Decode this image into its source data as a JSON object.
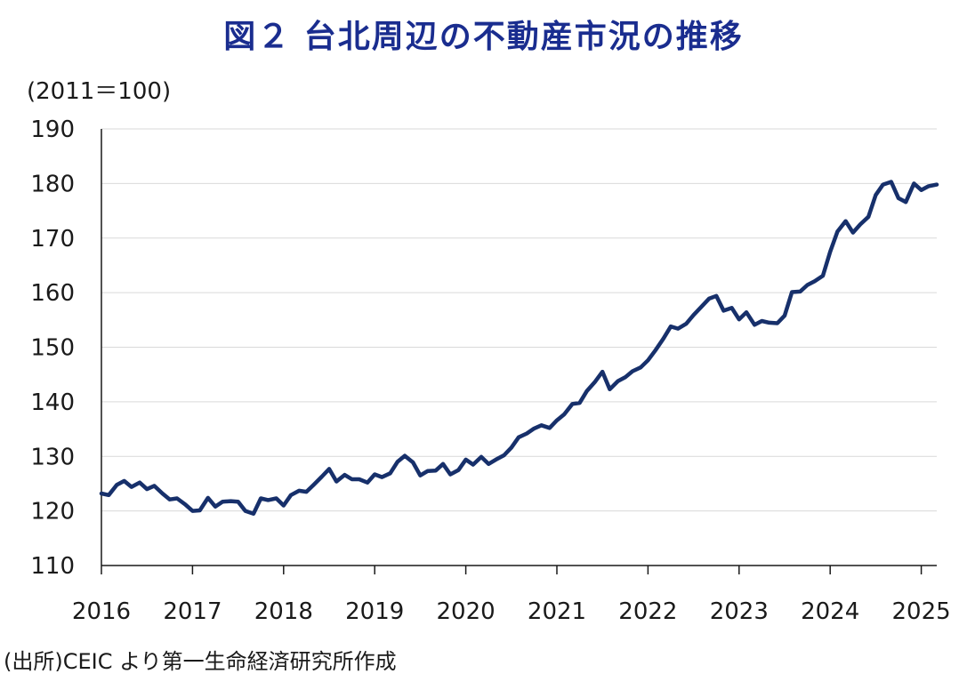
{
  "title": "図２ 台北周辺の不動産市況の推移",
  "unit_label": "(2011＝100)",
  "source": "(出所)CEIC より第一生命経済研究所作成",
  "colors": {
    "title": "#1a2d8f",
    "line": "#17306b",
    "grid": "#d9d9d9",
    "axis": "#1a1a1a"
  },
  "chart_data": {
    "type": "line",
    "title": "図２ 台北周辺の不動産市況の推移",
    "ylabel": "(2011＝100)",
    "xlabel": "",
    "ylim": [
      110,
      190
    ],
    "yticks": [
      110,
      120,
      130,
      140,
      150,
      160,
      170,
      180,
      190
    ],
    "xlim": [
      2016,
      2025.17
    ],
    "xticks": [
      2016,
      2017,
      2018,
      2019,
      2020,
      2021,
      2022,
      2023,
      2024,
      2025
    ],
    "grid": "horizontal",
    "series": [
      {
        "name": "",
        "x": [
          2016.0,
          2016.08,
          2016.17,
          2016.25,
          2016.33,
          2016.42,
          2016.5,
          2016.58,
          2016.67,
          2016.75,
          2016.83,
          2016.92,
          2017.0,
          2017.08,
          2017.17,
          2017.25,
          2017.33,
          2017.42,
          2017.5,
          2017.58,
          2017.67,
          2017.75,
          2017.83,
          2017.92,
          2018.0,
          2018.08,
          2018.17,
          2018.25,
          2018.33,
          2018.42,
          2018.5,
          2018.58,
          2018.67,
          2018.75,
          2018.83,
          2018.92,
          2019.0,
          2019.08,
          2019.17,
          2019.25,
          2019.33,
          2019.42,
          2019.5,
          2019.58,
          2019.67,
          2019.75,
          2019.83,
          2019.92,
          2020.0,
          2020.08,
          2020.17,
          2020.25,
          2020.33,
          2020.42,
          2020.5,
          2020.58,
          2020.67,
          2020.75,
          2020.83,
          2020.92,
          2021.0,
          2021.08,
          2021.17,
          2021.25,
          2021.33,
          2021.42,
          2021.5,
          2021.58,
          2021.67,
          2021.75,
          2021.83,
          2021.92,
          2022.0,
          2022.08,
          2022.17,
          2022.25,
          2022.33,
          2022.42,
          2022.5,
          2022.58,
          2022.67,
          2022.75,
          2022.83,
          2022.92,
          2023.0,
          2023.08,
          2023.17,
          2023.25,
          2023.33,
          2023.42,
          2023.5,
          2023.58,
          2023.67,
          2023.75,
          2023.83,
          2023.92,
          2024.0,
          2024.08,
          2024.17,
          2024.25,
          2024.33,
          2024.42,
          2024.5,
          2024.58,
          2024.67,
          2024.75,
          2024.83,
          2024.92,
          2025.0,
          2025.08,
          2025.17
        ],
        "values": [
          123.2,
          122.9,
          124.8,
          125.5,
          124.4,
          125.2,
          124.0,
          124.6,
          123.2,
          122.1,
          122.3,
          121.2,
          120.0,
          120.1,
          122.4,
          120.8,
          121.7,
          121.8,
          121.7,
          120.0,
          119.5,
          122.3,
          122.0,
          122.3,
          121.0,
          122.9,
          123.7,
          123.5,
          124.8,
          126.3,
          127.7,
          125.4,
          126.6,
          125.8,
          125.8,
          125.2,
          126.7,
          126.2,
          126.9,
          129.0,
          130.1,
          128.9,
          126.5,
          127.3,
          127.4,
          128.6,
          126.7,
          127.5,
          129.4,
          128.5,
          129.9,
          128.6,
          129.4,
          130.2,
          131.6,
          133.5,
          134.2,
          135.1,
          135.7,
          135.2,
          136.6,
          137.7,
          139.6,
          139.8,
          142.0,
          143.7,
          145.5,
          142.3,
          143.8,
          144.5,
          145.6,
          146.3,
          147.6,
          149.4,
          151.6,
          153.8,
          153.4,
          154.3,
          155.9,
          157.3,
          158.9,
          159.4,
          156.7,
          157.2,
          155.1,
          156.4,
          154.1,
          154.8,
          154.5,
          154.4,
          155.8,
          160.1,
          160.2,
          161.4,
          162.1,
          163.1,
          167.5,
          171.2,
          173.1,
          171.0,
          172.5,
          173.9,
          177.9,
          179.8,
          180.3,
          177.3,
          176.6,
          180.0,
          178.8,
          179.5,
          179.8
        ]
      }
    ]
  }
}
